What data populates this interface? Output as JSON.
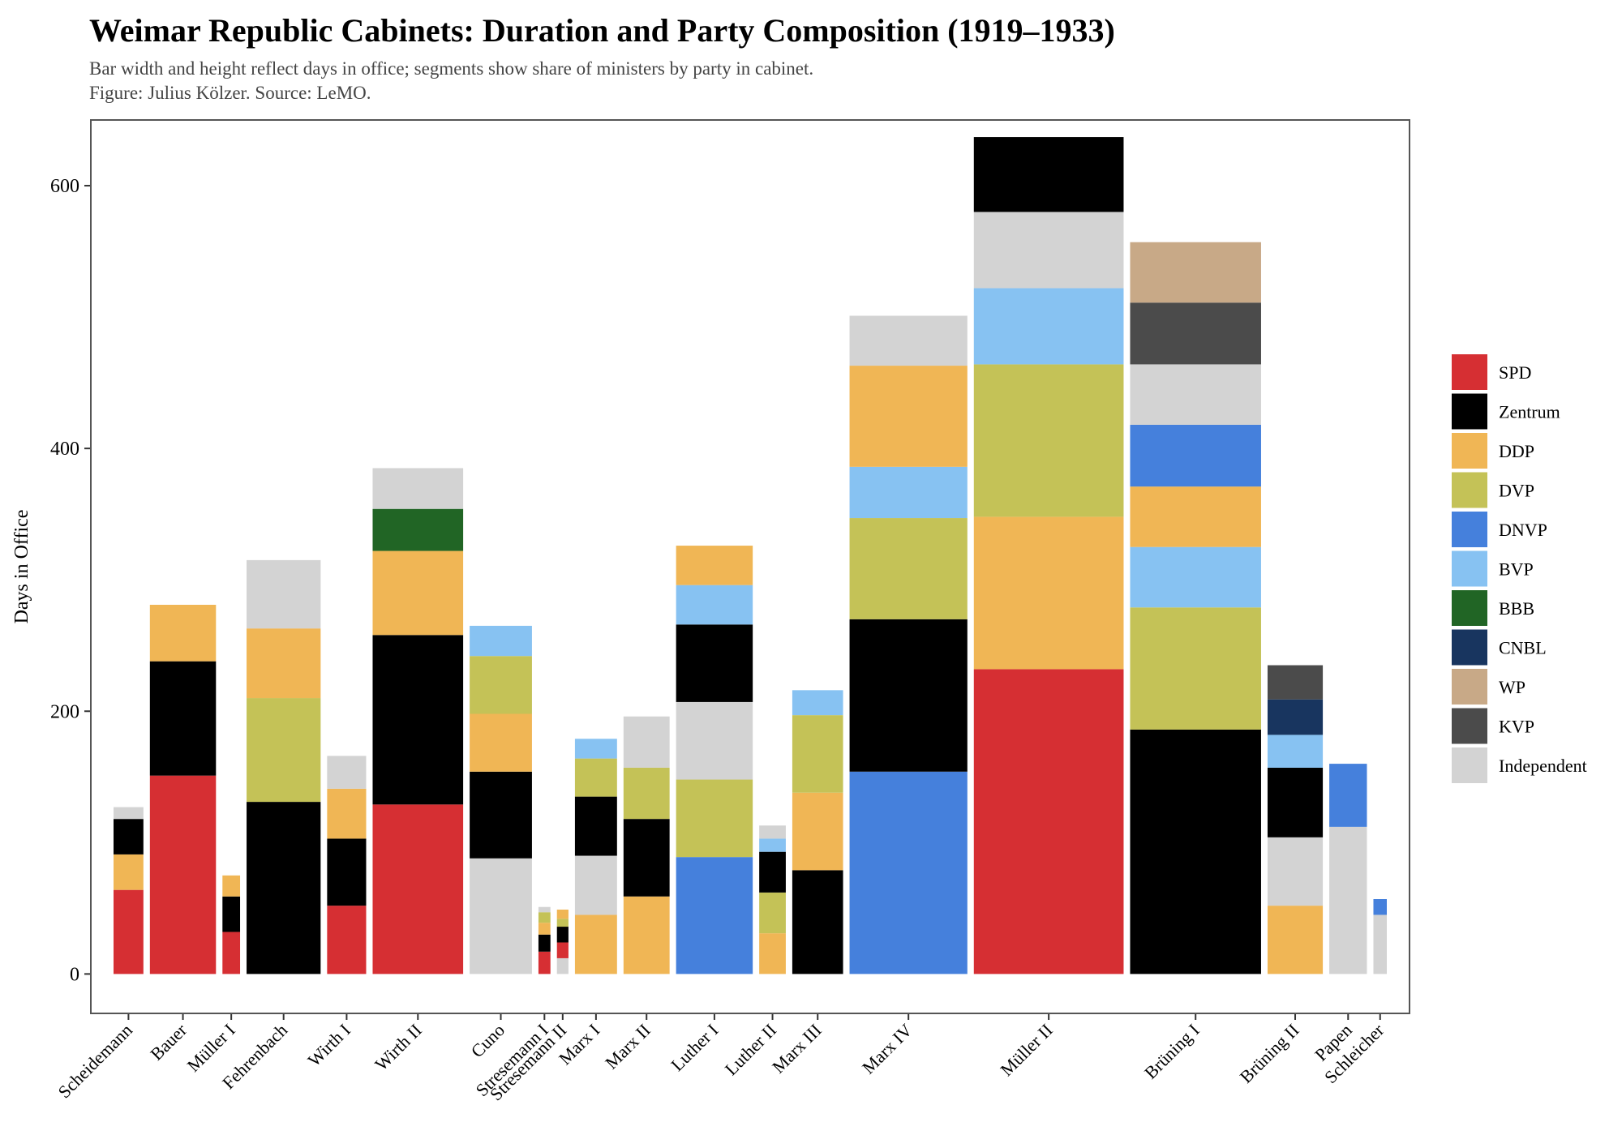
{
  "chart_data": {
    "type": "bar",
    "title": "Weimar Republic Cabinets: Duration and Party Composition (1919–1933)",
    "subtitle": "Bar width and height reflect days in office; segments show share of ministers by party in cabinet.",
    "caption": "Figure: Julius Kölzer. Source: LeMO.",
    "xlabel": "",
    "ylabel": "Days in Office",
    "ylim": [
      -30,
      650
    ],
    "yticks": [
      0,
      200,
      400,
      600
    ],
    "grid": false,
    "legend_position": "right",
    "parties": [
      "SPD",
      "Zentrum",
      "DDP",
      "DVP",
      "DNVP",
      "BVP",
      "BBB",
      "CNBL",
      "WP",
      "KVP",
      "Independent"
    ],
    "colors": {
      "SPD": "#d62f33",
      "Zentrum": "#000000",
      "DDP": "#f0b655",
      "DVP": "#c4c257",
      "DNVP": "#4580dc",
      "BVP": "#87c2f2",
      "BBB": "#216525",
      "CNBL": "#18355f",
      "WP": "#c8a987",
      "KVP": "#4b4b4b",
      "Independent": "#d3d3d3"
    },
    "cabinets": [
      {
        "name": "Scheidemann",
        "days": 127,
        "segments": [
          {
            "party": "SPD",
            "value": 64
          },
          {
            "party": "DDP",
            "value": 27
          },
          {
            "party": "Zentrum",
            "value": 27
          },
          {
            "party": "Independent",
            "value": 9
          }
        ]
      },
      {
        "name": "Bauer",
        "days": 281,
        "segments": [
          {
            "party": "SPD",
            "value": 151
          },
          {
            "party": "Zentrum",
            "value": 87
          },
          {
            "party": "DDP",
            "value": 43
          }
        ]
      },
      {
        "name": "Müller I",
        "days": 75,
        "segments": [
          {
            "party": "SPD",
            "value": 32
          },
          {
            "party": "Zentrum",
            "value": 27
          },
          {
            "party": "DDP",
            "value": 16
          }
        ]
      },
      {
        "name": "Fehrenbach",
        "days": 315,
        "segments": [
          {
            "party": "Zentrum",
            "value": 131
          },
          {
            "party": "DVP",
            "value": 79
          },
          {
            "party": "DDP",
            "value": 53
          },
          {
            "party": "Independent",
            "value": 52
          }
        ]
      },
      {
        "name": "Wirth I",
        "days": 166,
        "segments": [
          {
            "party": "SPD",
            "value": 52
          },
          {
            "party": "Zentrum",
            "value": 51
          },
          {
            "party": "DDP",
            "value": 38
          },
          {
            "party": "Independent",
            "value": 25
          }
        ]
      },
      {
        "name": "Wirth II",
        "days": 385,
        "segments": [
          {
            "party": "SPD",
            "value": 129
          },
          {
            "party": "Zentrum",
            "value": 129
          },
          {
            "party": "DDP",
            "value": 64
          },
          {
            "party": "BBB",
            "value": 32
          },
          {
            "party": "Independent",
            "value": 31
          }
        ]
      },
      {
        "name": "Cuno",
        "days": 265,
        "segments": [
          {
            "party": "Independent",
            "value": 88
          },
          {
            "party": "Zentrum",
            "value": 66
          },
          {
            "party": "DDP",
            "value": 44
          },
          {
            "party": "DVP",
            "value": 44
          },
          {
            "party": "BVP",
            "value": 23
          }
        ]
      },
      {
        "name": "Stresemann I",
        "days": 51,
        "segments": [
          {
            "party": "SPD",
            "value": 17
          },
          {
            "party": "Zentrum",
            "value": 13
          },
          {
            "party": "DDP",
            "value": 9
          },
          {
            "party": "DVP",
            "value": 8
          },
          {
            "party": "Independent",
            "value": 4
          }
        ]
      },
      {
        "name": "Stresemann II",
        "days": 49,
        "segments": [
          {
            "party": "Independent",
            "value": 12
          },
          {
            "party": "SPD",
            "value": 12
          },
          {
            "party": "Zentrum",
            "value": 12
          },
          {
            "party": "DVP",
            "value": 6
          },
          {
            "party": "DDP",
            "value": 7
          }
        ]
      },
      {
        "name": "Marx I",
        "days": 179,
        "segments": [
          {
            "party": "DDP",
            "value": 45
          },
          {
            "party": "Independent",
            "value": 45
          },
          {
            "party": "Zentrum",
            "value": 45
          },
          {
            "party": "DVP",
            "value": 29
          },
          {
            "party": "BVP",
            "value": 15
          }
        ]
      },
      {
        "name": "Marx II",
        "days": 196,
        "segments": [
          {
            "party": "DDP",
            "value": 59
          },
          {
            "party": "Zentrum",
            "value": 59
          },
          {
            "party": "DVP",
            "value": 39
          },
          {
            "party": "Independent",
            "value": 39
          }
        ]
      },
      {
        "name": "Luther I",
        "days": 326,
        "segments": [
          {
            "party": "DNVP",
            "value": 89
          },
          {
            "party": "DVP",
            "value": 59
          },
          {
            "party": "Independent",
            "value": 59
          },
          {
            "party": "Zentrum",
            "value": 59
          },
          {
            "party": "BVP",
            "value": 30
          },
          {
            "party": "DDP",
            "value": 30
          }
        ]
      },
      {
        "name": "Luther II",
        "days": 113,
        "segments": [
          {
            "party": "DDP",
            "value": 31
          },
          {
            "party": "DVP",
            "value": 31
          },
          {
            "party": "Zentrum",
            "value": 31
          },
          {
            "party": "BVP",
            "value": 10
          },
          {
            "party": "Independent",
            "value": 10
          }
        ]
      },
      {
        "name": "Marx III",
        "days": 216,
        "segments": [
          {
            "party": "Zentrum",
            "value": 79
          },
          {
            "party": "DDP",
            "value": 59
          },
          {
            "party": "DVP",
            "value": 59
          },
          {
            "party": "BVP",
            "value": 19
          }
        ]
      },
      {
        "name": "Marx IV",
        "days": 501,
        "segments": [
          {
            "party": "DNVP",
            "value": 154
          },
          {
            "party": "Zentrum",
            "value": 116
          },
          {
            "party": "DVP",
            "value": 77
          },
          {
            "party": "BVP",
            "value": 39
          },
          {
            "party": "DDP",
            "value": 77
          },
          {
            "party": "Independent",
            "value": 38
          }
        ]
      },
      {
        "name": "Müller II",
        "days": 637,
        "segments": [
          {
            "party": "SPD",
            "value": 232
          },
          {
            "party": "DDP",
            "value": 116
          },
          {
            "party": "DVP",
            "value": 116
          },
          {
            "party": "BVP",
            "value": 58
          },
          {
            "party": "Independent",
            "value": 58
          },
          {
            "party": "Zentrum",
            "value": 57
          }
        ]
      },
      {
        "name": "Brüning I",
        "days": 557,
        "segments": [
          {
            "party": "Zentrum",
            "value": 186
          },
          {
            "party": "DVP",
            "value": 93
          },
          {
            "party": "BVP",
            "value": 46
          },
          {
            "party": "DDP",
            "value": 46
          },
          {
            "party": "DNVP",
            "value": 47
          },
          {
            "party": "Independent",
            "value": 46
          },
          {
            "party": "KVP",
            "value": 47
          },
          {
            "party": "WP",
            "value": 46
          }
        ]
      },
      {
        "name": "Brüning II",
        "days": 235,
        "segments": [
          {
            "party": "DDP",
            "value": 52
          },
          {
            "party": "Independent",
            "value": 52
          },
          {
            "party": "Zentrum",
            "value": 53
          },
          {
            "party": "BVP",
            "value": 25
          },
          {
            "party": "CNBL",
            "value": 27
          },
          {
            "party": "KVP",
            "value": 26
          }
        ]
      },
      {
        "name": "Papen",
        "days": 160,
        "segments": [
          {
            "party": "Independent",
            "value": 112
          },
          {
            "party": "DNVP",
            "value": 48
          }
        ]
      },
      {
        "name": "Schleicher",
        "days": 57,
        "segments": [
          {
            "party": "Independent",
            "value": 45
          },
          {
            "party": "DNVP",
            "value": 12
          }
        ]
      }
    ]
  }
}
